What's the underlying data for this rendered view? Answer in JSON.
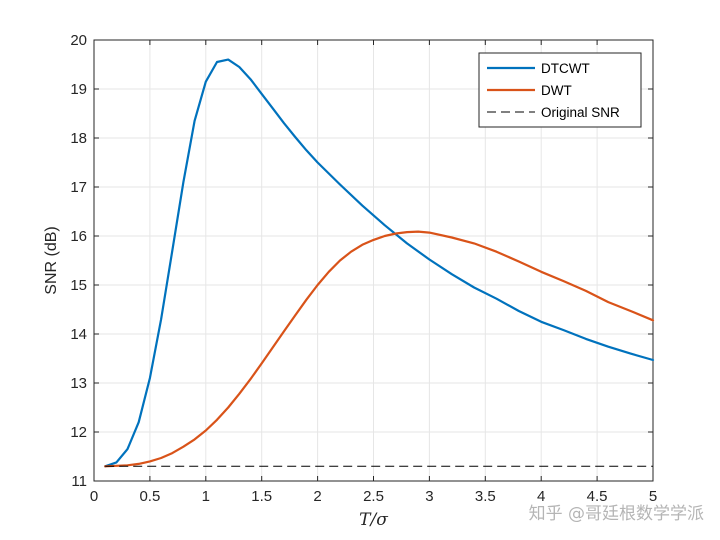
{
  "chart_data": {
    "type": "line",
    "xlabel": "T/σ",
    "ylabel": "SNR (dB)",
    "xlim": [
      0,
      5
    ],
    "ylim": [
      11,
      20
    ],
    "xticks": [
      0,
      0.5,
      1,
      1.5,
      2,
      2.5,
      3,
      3.5,
      4,
      4.5,
      5
    ],
    "xtick_labels": [
      "0",
      "0.5",
      "1",
      "1.5",
      "2",
      "2.5",
      "3",
      "3.5",
      "4",
      "4.5",
      "5"
    ],
    "yticks": [
      11,
      12,
      13,
      14,
      15,
      16,
      17,
      18,
      19,
      20
    ],
    "ytick_labels": [
      "11",
      "12",
      "13",
      "14",
      "15",
      "16",
      "17",
      "18",
      "19",
      "20"
    ],
    "grid": true,
    "legend_position": "top-right",
    "series": [
      {
        "name": "DTCWT",
        "color": "#0072BD",
        "style": "solid",
        "x": [
          0.1,
          0.2,
          0.3,
          0.4,
          0.5,
          0.6,
          0.7,
          0.8,
          0.9,
          1.0,
          1.1,
          1.2,
          1.3,
          1.4,
          1.5,
          1.6,
          1.7,
          1.8,
          1.9,
          2.0,
          2.2,
          2.4,
          2.6,
          2.8,
          3.0,
          3.2,
          3.4,
          3.6,
          3.8,
          4.0,
          4.2,
          4.4,
          4.6,
          4.8,
          5.0
        ],
        "y": [
          11.3,
          11.38,
          11.65,
          12.2,
          13.1,
          14.3,
          15.7,
          17.1,
          18.35,
          19.15,
          19.55,
          19.6,
          19.45,
          19.2,
          18.9,
          18.6,
          18.3,
          18.02,
          17.75,
          17.5,
          17.05,
          16.62,
          16.22,
          15.85,
          15.52,
          15.22,
          14.95,
          14.72,
          14.47,
          14.25,
          14.08,
          13.9,
          13.74,
          13.6,
          13.47
        ]
      },
      {
        "name": "DWT",
        "color": "#D95319",
        "style": "solid",
        "x": [
          0.1,
          0.2,
          0.3,
          0.4,
          0.5,
          0.6,
          0.7,
          0.8,
          0.9,
          1.0,
          1.1,
          1.2,
          1.3,
          1.4,
          1.5,
          1.6,
          1.7,
          1.8,
          1.9,
          2.0,
          2.1,
          2.2,
          2.3,
          2.4,
          2.5,
          2.6,
          2.7,
          2.8,
          2.9,
          3.0,
          3.2,
          3.4,
          3.6,
          3.8,
          4.0,
          4.2,
          4.4,
          4.6,
          4.8,
          5.0
        ],
        "y": [
          11.3,
          11.31,
          11.32,
          11.35,
          11.4,
          11.47,
          11.57,
          11.7,
          11.85,
          12.03,
          12.25,
          12.5,
          12.78,
          13.08,
          13.4,
          13.73,
          14.06,
          14.38,
          14.7,
          15.0,
          15.27,
          15.5,
          15.68,
          15.82,
          15.92,
          16.0,
          16.05,
          16.08,
          16.09,
          16.07,
          15.97,
          15.85,
          15.68,
          15.48,
          15.27,
          15.08,
          14.88,
          14.65,
          14.47,
          14.28
        ]
      },
      {
        "name": "Original SNR",
        "color": "#000000",
        "style": "dashed",
        "x": [
          0.1,
          5.0
        ],
        "y": [
          11.3,
          11.3
        ]
      }
    ]
  },
  "watermark": "知乎 @哥廷根数学学派"
}
